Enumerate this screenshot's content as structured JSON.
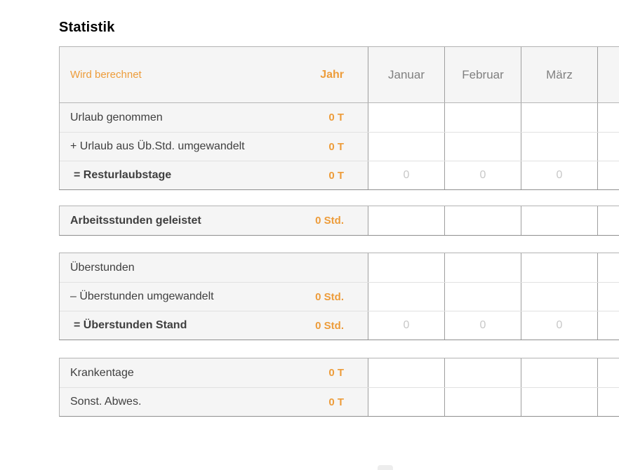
{
  "page": {
    "title": "Statistik"
  },
  "colors": {
    "accent_orange": "#ed9c3a",
    "label_text": "#3f3f3f",
    "month_header_text": "#808080",
    "muted_zero_text": "#c8c8c8",
    "cell_gray_background": "#f5f5f5"
  },
  "table": {
    "header": {
      "left_label": "Wird berechnet",
      "year_label": "Jahr",
      "months": [
        "Januar",
        "Februar",
        "März",
        ""
      ]
    }
  },
  "sections": [
    {
      "rows": [
        {
          "label": "Urlaub genommen",
          "value": "0 T",
          "months": [
            "",
            "",
            "",
            ""
          ]
        },
        {
          "label": "+ Urlaub aus Üb.Std. umgewandelt",
          "value": "0 T",
          "months": [
            "",
            "",
            "",
            ""
          ]
        },
        {
          "label": "= Resturlaubstage",
          "value": "0 T",
          "months": [
            "0",
            "0",
            "0",
            ""
          ]
        }
      ]
    },
    {
      "rows": [
        {
          "label": "Arbeitsstunden geleistet",
          "value": "0 Std.",
          "months": [
            "",
            "",
            "",
            ""
          ]
        }
      ]
    },
    {
      "rows": [
        {
          "label": "Überstunden",
          "value": "",
          "months": [
            "",
            "",
            "",
            ""
          ]
        },
        {
          "label": "– Überstunden umgewandelt",
          "value": "0 Std.",
          "months": [
            "",
            "",
            "",
            ""
          ]
        },
        {
          "label": "= Überstunden Stand",
          "value": "0 Std.",
          "months": [
            "0",
            "0",
            "0",
            ""
          ]
        }
      ]
    },
    {
      "rows": [
        {
          "label": "Krankentage",
          "value": "0 T",
          "months": [
            "",
            "",
            "",
            ""
          ]
        },
        {
          "label": "Sonst. Abwes.",
          "value": "0 T",
          "months": [
            "",
            "",
            "",
            ""
          ]
        }
      ]
    }
  ]
}
